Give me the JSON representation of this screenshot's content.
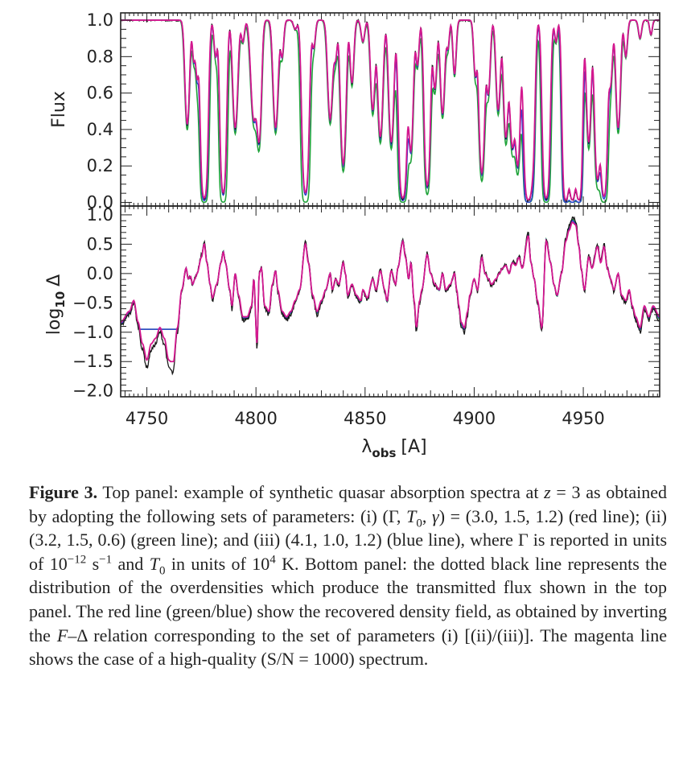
{
  "chart_data": [
    {
      "type": "line",
      "panel": "top",
      "ylabel": "Flux",
      "xlim": [
        4738,
        4985
      ],
      "ylim": [
        -0.02,
        1.04
      ],
      "yticks": [
        0.0,
        0.2,
        0.4,
        0.6,
        0.8,
        1.0
      ],
      "ytick_labels": [
        "0.0",
        "0.2",
        "0.4",
        "0.6",
        "0.8",
        "1.0"
      ],
      "xticks": [
        4750,
        4800,
        4850,
        4900,
        4950
      ],
      "series_colors": {
        "black": "#1a1a1a",
        "blue": "#2b3fcf",
        "green": "#1fa33a",
        "magenta": "#d4188f"
      },
      "continuum": 1.0,
      "absorption_lines": [
        {
          "x": 4768.5,
          "depth": 0.58,
          "width": 0.9
        },
        {
          "x": 4771.5,
          "depth": 0.22,
          "width": 0.6
        },
        {
          "x": 4773.0,
          "depth": 0.3,
          "width": 0.6
        },
        {
          "x": 4776.3,
          "depth": 0.99,
          "width": 1.1
        },
        {
          "x": 4781.5,
          "depth": 0.2,
          "width": 0.7
        },
        {
          "x": 4785.0,
          "depth": 0.96,
          "width": 1.0
        },
        {
          "x": 4790.5,
          "depth": 0.6,
          "width": 1.0
        },
        {
          "x": 4794.0,
          "depth": 0.12,
          "width": 0.7
        },
        {
          "x": 4799.0,
          "depth": 0.55,
          "width": 1.2
        },
        {
          "x": 4801.5,
          "depth": 0.65,
          "width": 0.9
        },
        {
          "x": 4809.0,
          "depth": 0.6,
          "width": 1.0
        },
        {
          "x": 4812.0,
          "depth": 0.2,
          "width": 0.7
        },
        {
          "x": 4818.0,
          "depth": 0.05,
          "width": 0.8
        },
        {
          "x": 4822.7,
          "depth": 0.96,
          "width": 1.1
        },
        {
          "x": 4826.5,
          "depth": 0.15,
          "width": 0.7
        },
        {
          "x": 4834.0,
          "depth": 0.55,
          "width": 1.0
        },
        {
          "x": 4836.5,
          "depth": 0.2,
          "width": 0.7
        },
        {
          "x": 4840.0,
          "depth": 0.8,
          "width": 1.0
        },
        {
          "x": 4844.0,
          "depth": 0.35,
          "width": 0.8
        },
        {
          "x": 4849.0,
          "depth": 0.12,
          "width": 0.8
        },
        {
          "x": 4853.5,
          "depth": 0.5,
          "width": 0.9
        },
        {
          "x": 4857.0,
          "depth": 0.65,
          "width": 1.0
        },
        {
          "x": 4862.0,
          "depth": 0.68,
          "width": 1.0
        },
        {
          "x": 4867.3,
          "depth": 0.99,
          "width": 1.2
        },
        {
          "x": 4871.0,
          "depth": 0.72,
          "width": 0.9
        },
        {
          "x": 4874.0,
          "depth": 0.25,
          "width": 0.7
        },
        {
          "x": 4878.5,
          "depth": 0.92,
          "width": 1.0
        },
        {
          "x": 4882.0,
          "depth": 0.38,
          "width": 0.8
        },
        {
          "x": 4885.5,
          "depth": 0.52,
          "width": 0.9
        },
        {
          "x": 4888.0,
          "depth": 0.15,
          "width": 0.6
        },
        {
          "x": 4891.0,
          "depth": 0.3,
          "width": 0.7
        },
        {
          "x": 4900.5,
          "depth": 0.3,
          "width": 0.7
        },
        {
          "x": 4903.5,
          "depth": 0.85,
          "width": 1.0
        },
        {
          "x": 4906.5,
          "depth": 0.4,
          "width": 0.8
        },
        {
          "x": 4911.0,
          "depth": 0.5,
          "width": 0.9
        },
        {
          "x": 4914.5,
          "depth": 0.65,
          "width": 0.9
        },
        {
          "x": 4917.5,
          "depth": 0.7,
          "width": 1.0
        },
        {
          "x": 4920.0,
          "depth": 0.8,
          "width": 0.9
        },
        {
          "x": 4924.8,
          "depth": 1.0,
          "width": 1.3
        },
        {
          "x": 4927.0,
          "depth": 0.55,
          "width": 0.8
        },
        {
          "x": 4933.0,
          "depth": 0.99,
          "width": 1.1
        },
        {
          "x": 4937.5,
          "depth": 0.12,
          "width": 0.6
        },
        {
          "x": 4942.0,
          "depth": 1.0,
          "width": 1.0
        },
        {
          "x": 4945.0,
          "depth": 1.0,
          "width": 1.0
        },
        {
          "x": 4948.0,
          "depth": 1.0,
          "width": 1.0
        },
        {
          "x": 4952.5,
          "depth": 0.68,
          "width": 0.9
        },
        {
          "x": 4956.5,
          "depth": 0.88,
          "width": 1.0
        },
        {
          "x": 4959.5,
          "depth": 0.98,
          "width": 1.0
        },
        {
          "x": 4962.5,
          "depth": 0.35,
          "width": 0.8
        },
        {
          "x": 4966.0,
          "depth": 0.6,
          "width": 0.9
        },
        {
          "x": 4969.5,
          "depth": 0.2,
          "width": 0.7
        },
        {
          "x": 4976.0,
          "depth": 0.1,
          "width": 0.7
        },
        {
          "x": 4981.0,
          "depth": 0.08,
          "width": 0.6
        }
      ]
    },
    {
      "type": "line",
      "panel": "bottom",
      "ylabel": "log10 Δ",
      "ylabel_main": "log",
      "ylabel_sub": "10",
      "ylabel_symbol": "Δ",
      "xlabel_main": "λ",
      "xlabel_sub": "obs",
      "xlabel_unit": "[A]",
      "xlim": [
        4738,
        4985
      ],
      "ylim": [
        -2.1,
        1.15
      ],
      "yticks": [
        1.0,
        0.5,
        0.0,
        -0.5,
        -1.0,
        -1.5,
        -2.0
      ],
      "ytick_labels": [
        "1.0",
        "0.5",
        "0.0",
        "−0.5",
        "−1.0",
        "−1.5",
        "−2.0"
      ],
      "xticks": [
        4750,
        4800,
        4850,
        4900,
        4950
      ],
      "xtick_labels": [
        "4750",
        "4800",
        "4850",
        "4900",
        "4950"
      ],
      "density_profile": [
        [
          4738,
          -0.9
        ],
        [
          4742,
          -0.7
        ],
        [
          4744,
          -0.5
        ],
        [
          4746,
          -0.9
        ],
        [
          4748,
          -1.3
        ],
        [
          4750,
          -1.6
        ],
        [
          4752,
          -1.3
        ],
        [
          4754,
          -1.2
        ],
        [
          4756,
          -1.0
        ],
        [
          4758,
          -1.2
        ],
        [
          4760,
          -1.6
        ],
        [
          4762,
          -1.7
        ],
        [
          4764,
          -1.0
        ],
        [
          4766,
          -0.3
        ],
        [
          4768,
          0.1
        ],
        [
          4769,
          -0.1
        ],
        [
          4770,
          -0.05
        ],
        [
          4771,
          -0.2
        ],
        [
          4772,
          -0.1
        ],
        [
          4773,
          0.0
        ],
        [
          4775,
          0.3
        ],
        [
          4776.3,
          0.55
        ],
        [
          4777.5,
          0.2
        ],
        [
          4779,
          -0.2
        ],
        [
          4780,
          -0.45
        ],
        [
          4782,
          -0.2
        ],
        [
          4784,
          0.2
        ],
        [
          4785,
          0.4
        ],
        [
          4786,
          0.2
        ],
        [
          4788,
          -0.3
        ],
        [
          4789,
          -0.6
        ],
        [
          4790.5,
          0.0
        ],
        [
          4792,
          -0.4
        ],
        [
          4794,
          -0.8
        ],
        [
          4796,
          -0.8
        ],
        [
          4798,
          -0.6
        ],
        [
          4799,
          -0.1
        ],
        [
          4800.5,
          -1.3
        ],
        [
          4801.5,
          0.0
        ],
        [
          4802.5,
          0.1
        ],
        [
          4804,
          -0.6
        ],
        [
          4806,
          -0.7
        ],
        [
          4807.5,
          -0.2
        ],
        [
          4809,
          0.05
        ],
        [
          4810,
          -0.3
        ],
        [
          4812,
          -0.7
        ],
        [
          4814,
          -0.8
        ],
        [
          4816,
          -0.7
        ],
        [
          4818,
          -0.5
        ],
        [
          4820,
          -0.3
        ],
        [
          4822.7,
          0.55
        ],
        [
          4824,
          0.2
        ],
        [
          4826,
          -0.4
        ],
        [
          4828,
          -0.7
        ],
        [
          4830,
          -0.5
        ],
        [
          4832,
          -0.3
        ],
        [
          4834,
          0.0
        ],
        [
          4835,
          -0.3
        ],
        [
          4836.5,
          -0.1
        ],
        [
          4838,
          -0.2
        ],
        [
          4840,
          0.2
        ],
        [
          4841,
          0.0
        ],
        [
          4842,
          -0.4
        ],
        [
          4844,
          -0.2
        ],
        [
          4846,
          -0.4
        ],
        [
          4848,
          -0.5
        ],
        [
          4849,
          -0.3
        ],
        [
          4851,
          -0.45
        ],
        [
          4853.5,
          -0.1
        ],
        [
          4855,
          -0.3
        ],
        [
          4857,
          0.05
        ],
        [
          4859,
          -0.3
        ],
        [
          4860,
          -0.5
        ],
        [
          4862,
          0.05
        ],
        [
          4864,
          -0.2
        ],
        [
          4865,
          0.1
        ],
        [
          4867.3,
          0.6
        ],
        [
          4868.5,
          0.3
        ],
        [
          4870,
          -0.1
        ],
        [
          4871,
          0.2
        ],
        [
          4872.5,
          -0.5
        ],
        [
          4873.5,
          -1.0
        ],
        [
          4875,
          -0.5
        ],
        [
          4876,
          -0.3
        ],
        [
          4878.5,
          0.35
        ],
        [
          4880,
          0.0
        ],
        [
          4882,
          -0.2
        ],
        [
          4884,
          -0.3
        ],
        [
          4885.5,
          0.0
        ],
        [
          4887,
          -0.3
        ],
        [
          4889,
          -0.2
        ],
        [
          4891,
          0.0
        ],
        [
          4892,
          -0.3
        ],
        [
          4893,
          -0.6
        ],
        [
          4894,
          -0.9
        ],
        [
          4895.5,
          -1.0
        ],
        [
          4897,
          -0.7
        ],
        [
          4898,
          -0.4
        ],
        [
          4900,
          -0.1
        ],
        [
          4901.5,
          -0.3
        ],
        [
          4903.5,
          0.3
        ],
        [
          4905,
          0.0
        ],
        [
          4906.5,
          -0.1
        ],
        [
          4908,
          -0.2
        ],
        [
          4910,
          -0.1
        ],
        [
          4911.5,
          0.0
        ],
        [
          4913,
          0.1
        ],
        [
          4914.5,
          0.15
        ],
        [
          4916,
          0.0
        ],
        [
          4917.5,
          0.2
        ],
        [
          4919,
          0.15
        ],
        [
          4920.5,
          0.3
        ],
        [
          4922,
          0.1
        ],
        [
          4924.8,
          0.7
        ],
        [
          4926,
          0.2
        ],
        [
          4927.5,
          -0.1
        ],
        [
          4929,
          -0.5
        ],
        [
          4931,
          -1.0
        ],
        [
          4933,
          0.6
        ],
        [
          4935,
          0.2
        ],
        [
          4936.5,
          -0.2
        ],
        [
          4938,
          -0.4
        ],
        [
          4940,
          0.0
        ],
        [
          4942,
          0.6
        ],
        [
          4943.5,
          0.8
        ],
        [
          4945,
          0.95
        ],
        [
          4946.5,
          0.9
        ],
        [
          4948,
          0.5
        ],
        [
          4949,
          0.1
        ],
        [
          4950.5,
          -0.3
        ],
        [
          4952.5,
          0.3
        ],
        [
          4954,
          0.1
        ],
        [
          4956.5,
          0.5
        ],
        [
          4958,
          0.2
        ],
        [
          4959.5,
          0.5
        ],
        [
          4961,
          0.1
        ],
        [
          4962.5,
          -0.1
        ],
        [
          4964,
          -0.3
        ],
        [
          4966,
          0.0
        ],
        [
          4967.5,
          -0.4
        ],
        [
          4969.5,
          -0.5
        ],
        [
          4971,
          -0.3
        ],
        [
          4972.5,
          -0.6
        ],
        [
          4974,
          -0.8
        ],
        [
          4976,
          -1.0
        ],
        [
          4978,
          -0.6
        ],
        [
          4980,
          -0.8
        ],
        [
          4982,
          -0.6
        ],
        [
          4985,
          -0.8
        ]
      ]
    }
  ],
  "caption": {
    "label": "Figure 3.",
    "segments": [
      {
        "t": " Top panel: example of synthetic quasar absorption spectra at "
      },
      {
        "t": "z",
        "i": true
      },
      {
        "t": " = 3 as obtained by adopting the following sets of parameters: (i) (Γ, "
      },
      {
        "t": "T",
        "i": true
      },
      {
        "t": "0",
        "sub": true
      },
      {
        "t": ", "
      },
      {
        "t": "γ",
        "i": true
      },
      {
        "t": ") = (3.0, 1.5, 1.2) (red line); (ii) (3.2, 1.5, 0.6) (green line); and (iii) (4.1, 1.0, 1.2) (blue line), where Γ is reported in units of 10"
      },
      {
        "t": "−12",
        "sup": true
      },
      {
        "t": " s"
      },
      {
        "t": "−1",
        "sup": true
      },
      {
        "t": " and "
      },
      {
        "t": "T",
        "i": true
      },
      {
        "t": "0",
        "sub": true
      },
      {
        "t": " in units of 10"
      },
      {
        "t": "4",
        "sup": true
      },
      {
        "t": " K. Bottom panel: the dotted black line represents the distribution of the overdensities which produce the transmitted flux shown in the top panel. The red line (green/blue) show the recovered density field, as obtained by inverting the "
      },
      {
        "t": "F",
        "i": true
      },
      {
        "t": "–Δ relation corresponding to the set of parameters (i) [(ii)/(iii)]. The magenta line shows the case of a high-quality (S/N = 1000) spectrum."
      }
    ]
  }
}
